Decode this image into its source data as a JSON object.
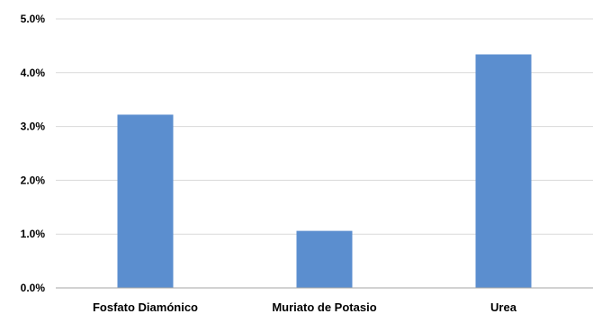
{
  "chart_data": {
    "type": "bar",
    "categories": [
      "Fosfato Diamónico",
      "Muriato de Potasio",
      "Urea"
    ],
    "values": [
      3.22,
      1.06,
      4.34
    ],
    "ylim": [
      0,
      5
    ],
    "yticks": [
      0,
      1,
      2,
      3,
      4,
      5
    ],
    "ytick_labels": [
      "0.0%",
      "1.0%",
      "2.0%",
      "3.0%",
      "4.0%",
      "5.0%"
    ],
    "grid": true,
    "legend": "none",
    "bar_color": "#5B8ECF",
    "grid_color": "#D9D9D9",
    "axis_color": "#A6A6A6"
  }
}
